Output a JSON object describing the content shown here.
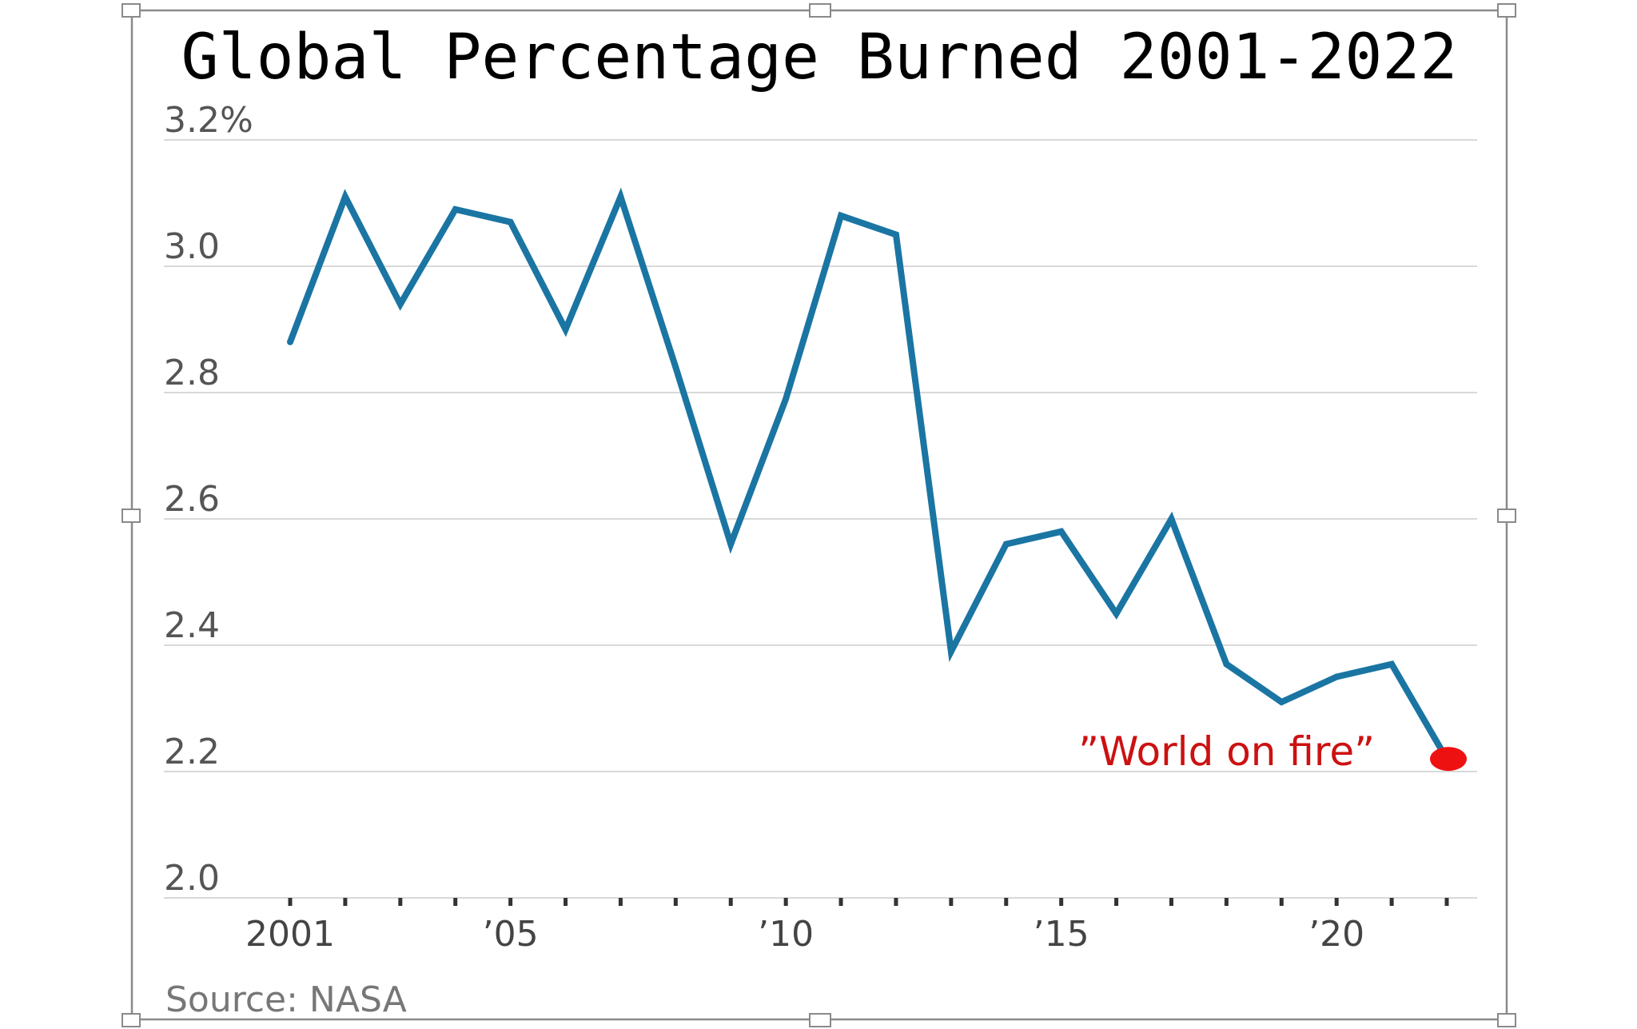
{
  "chart_data": {
    "type": "line",
    "title": "Global Percentage Burned 2001-2022",
    "x": [
      2001,
      2002,
      2003,
      2004,
      2005,
      2006,
      2007,
      2008,
      2009,
      2010,
      2011,
      2012,
      2013,
      2014,
      2015,
      2016,
      2017,
      2018,
      2019,
      2020,
      2021,
      2022
    ],
    "series": [
      {
        "values": [
          2.88,
          3.11,
          2.94,
          3.09,
          3.07,
          2.9,
          3.11,
          2.84,
          2.56,
          2.79,
          3.08,
          3.05,
          2.39,
          2.56,
          2.58,
          2.45,
          2.6,
          2.37,
          2.31,
          2.35,
          2.37,
          2.22
        ],
        "color": "#1a75a3"
      }
    ],
    "ylim": [
      2.0,
      3.2
    ],
    "yticks": [
      {
        "value": 3.2,
        "label": "3.2%"
      },
      {
        "value": 3.0,
        "label": "3.0"
      },
      {
        "value": 2.8,
        "label": "2.8"
      },
      {
        "value": 2.6,
        "label": "2.6"
      },
      {
        "value": 2.4,
        "label": "2.4"
      },
      {
        "value": 2.2,
        "label": "2.2"
      },
      {
        "value": 2.0,
        "label": "2.0"
      }
    ],
    "xticks": [
      {
        "value": 2001,
        "label": "2001"
      },
      {
        "value": 2005,
        "label": "’05"
      },
      {
        "value": 2010,
        "label": "’10"
      },
      {
        "value": 2015,
        "label": "’15"
      },
      {
        "value": 2020,
        "label": "’20"
      }
    ],
    "grid": true,
    "xlabel": "",
    "ylabel": "",
    "source": "Source: NASA",
    "annotation": {
      "text": "”World on fire”",
      "x": 2022,
      "y": 2.22,
      "color": "#ee1111"
    }
  }
}
